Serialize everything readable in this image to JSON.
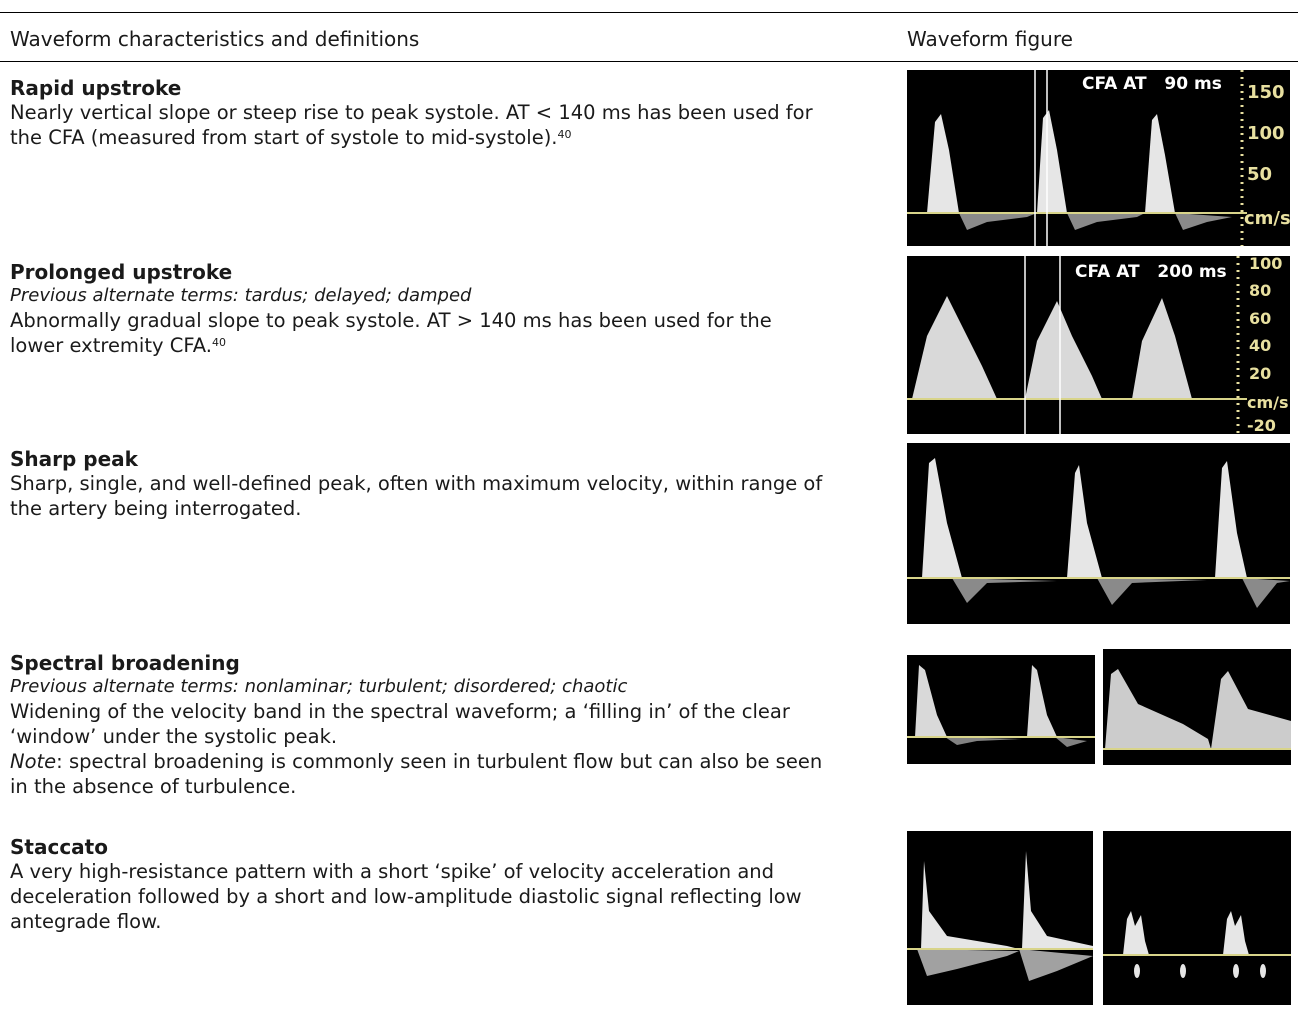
{
  "header": {
    "col_left": "Waveform characteristics and definitions",
    "col_right": "Waveform figure"
  },
  "rows": [
    {
      "title": "Rapid upstroke",
      "desc": "Nearly vertical slope or steep rise to peak systole. AT < 140 ms has been used for the CFA (measured from start of systole to mid-systole).",
      "ref": "40",
      "figure": {
        "label": "CFA AT",
        "value": "90 ms",
        "scale": [
          "150",
          "100",
          "50",
          "cm/s"
        ]
      }
    },
    {
      "title": "Prolonged upstroke",
      "alt": "Previous alternate terms: tardus; delayed; damped",
      "desc": "Abnormally gradual slope to peak systole. AT > 140 ms has been used for the lower extremity CFA.",
      "ref": "40",
      "figure": {
        "label": "CFA AT",
        "value": "200 ms",
        "scale": [
          "100",
          "80",
          "60",
          "40",
          "20",
          "cm/s",
          "-20"
        ]
      }
    },
    {
      "title": "Sharp peak",
      "desc": "Sharp, single, and well-defined peak, often with maximum velocity, within range of the artery being interrogated."
    },
    {
      "title": "Spectral broadening",
      "alt": "Previous alternate terms: nonlaminar; turbulent; disordered; chaotic",
      "desc": "Widening of the velocity band in the spectral waveform; a ‘filling in’ of the clear ‘window’ under the systolic peak.",
      "note_label": "Note",
      "note": ": spectral broadening is commonly seen in turbulent flow but can also be seen in the absence of turbulence."
    },
    {
      "title": "Staccato",
      "desc": "A very high-resistance pattern with a short ‘spike’ of velocity acceleration and deceleration followed by a short and low-amplitude diastolic signal reflecting low antegrade flow."
    }
  ],
  "colors": {
    "baseline": "#d8d48a",
    "signal": "#ffffff",
    "background": "#000000",
    "scale": "#e8e0a0"
  }
}
